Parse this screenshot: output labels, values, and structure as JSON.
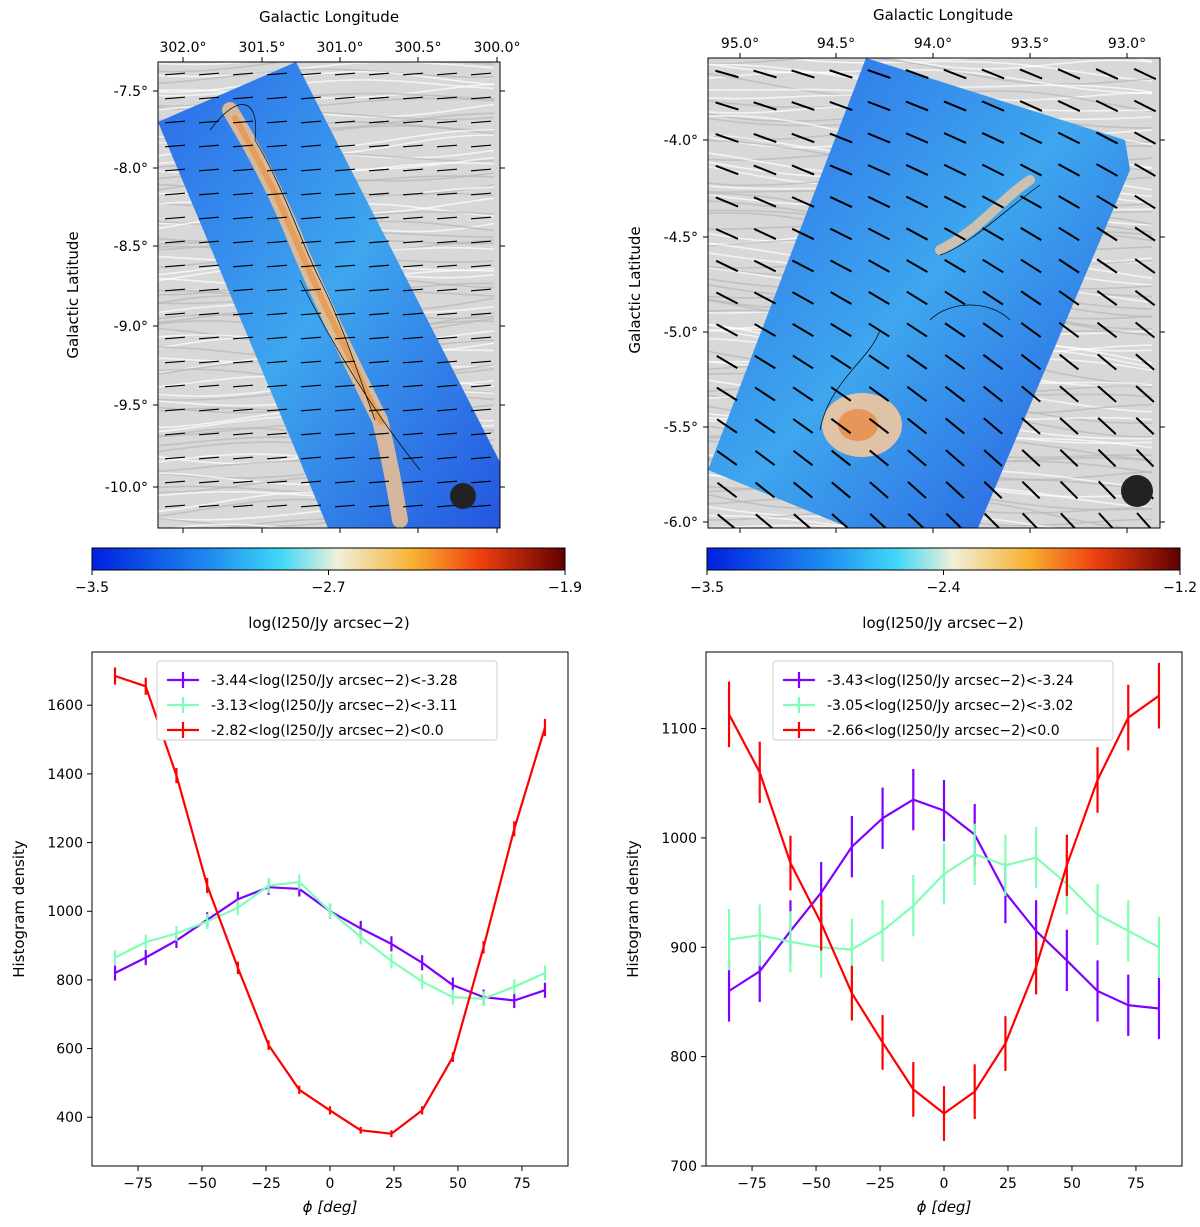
{
  "colors": {
    "purple": "#7f00ff",
    "green": "#80ffb4",
    "red": "#ff0000"
  },
  "maps": [
    {
      "title": "Galactic Longitude",
      "ylabel": "Galactic Latitude",
      "xticks": [
        "302.0°",
        "301.5°",
        "301.0°",
        "300.5°",
        "300.0°"
      ],
      "yticks": [
        "-7.5°",
        "-8.0°",
        "-8.5°",
        "-9.0°",
        "-9.5°",
        "-10.0°"
      ],
      "colorbar": {
        "min": -3.5,
        "max": -1.9,
        "ticks": [
          "−3.5",
          "−2.7",
          "−1.9"
        ],
        "label": "log(I250/Jy arcsec−2)"
      }
    },
    {
      "title": "Galactic Longitude",
      "ylabel": "Galactic Latitude",
      "xticks": [
        "95.0°",
        "94.5°",
        "94.0°",
        "93.5°",
        "93.0°"
      ],
      "yticks": [
        "-4.0°",
        "-4.5°",
        "-5.0°",
        "-5.5°",
        "-6.0°"
      ],
      "colorbar": {
        "min": -3.5,
        "max": -1.2,
        "ticks": [
          "−3.5",
          "−2.4",
          "−1.2"
        ],
        "label": "log(I250/Jy arcsec−2)"
      }
    }
  ],
  "chart_data": [
    {
      "type": "line",
      "xlabel": "ϕ [deg]",
      "ylabel": "Histogram density",
      "xlim": [
        -93,
        93
      ],
      "ylim": [
        258,
        1755
      ],
      "xticks": [
        -75,
        -50,
        -25,
        0,
        25,
        50,
        75
      ],
      "yticks": [
        400,
        600,
        800,
        1000,
        1200,
        1400,
        1600
      ],
      "x": [
        -84,
        -72,
        -60,
        -48,
        -36,
        -24,
        -12,
        0,
        12,
        24,
        36,
        48,
        60,
        72,
        84
      ],
      "legend_position": "top-center",
      "series": [
        {
          "name": "-3.44<log(I250/Jy arcsec−2)<-3.28",
          "color": "#7f00ff",
          "values": [
            820,
            865,
            915,
            975,
            1035,
            1070,
            1065,
            1000,
            950,
            905,
            850,
            785,
            750,
            740,
            770
          ],
          "err": [
            22,
            22,
            22,
            22,
            22,
            22,
            22,
            22,
            22,
            22,
            22,
            22,
            22,
            22,
            22
          ]
        },
        {
          "name": "-3.13<log(I250/Jy arcsec−2)<-3.11",
          "color": "#80ffb4",
          "values": [
            865,
            910,
            935,
            970,
            1010,
            1075,
            1085,
            1000,
            925,
            855,
            795,
            750,
            745,
            780,
            820
          ],
          "err": [
            22,
            22,
            22,
            22,
            22,
            22,
            22,
            22,
            22,
            22,
            22,
            22,
            22,
            22,
            22
          ]
        },
        {
          "name": "-2.82<log(I250/Jy arcsec−2)<0.0",
          "color": "#ff0000",
          "values": [
            1685,
            1655,
            1395,
            1075,
            835,
            610,
            480,
            420,
            362,
            352,
            420,
            575,
            895,
            1240,
            1535
          ],
          "err": [
            25,
            25,
            22,
            22,
            18,
            14,
            12,
            12,
            10,
            10,
            12,
            14,
            18,
            22,
            25
          ]
        }
      ]
    },
    {
      "type": "line",
      "xlabel": "ϕ [deg]",
      "ylabel": "Histogram density",
      "xlim": [
        -93,
        93
      ],
      "ylim": [
        700,
        1170
      ],
      "xticks": [
        -75,
        -50,
        -25,
        0,
        25,
        50,
        75
      ],
      "yticks": [
        700,
        800,
        900,
        1000,
        1100
      ],
      "x": [
        -84,
        -72,
        -60,
        -48,
        -36,
        -24,
        -12,
        0,
        12,
        24,
        36,
        48,
        60,
        72,
        84
      ],
      "legend_position": "top-center",
      "series": [
        {
          "name": "-3.43<log(I250/Jy arcsec−2)<-3.24",
          "color": "#7f00ff",
          "values": [
            860,
            878,
            915,
            950,
            992,
            1018,
            1035,
            1025,
            1003,
            950,
            915,
            888,
            860,
            847,
            844
          ],
          "err": [
            28,
            28,
            28,
            28,
            28,
            28,
            28,
            28,
            28,
            28,
            28,
            28,
            28,
            28,
            28
          ]
        },
        {
          "name": "-3.05<log(I250/Jy arcsec−2)<-3.02",
          "color": "#80ffb4",
          "values": [
            907,
            911,
            905,
            900,
            898,
            915,
            938,
            967,
            985,
            975,
            982,
            958,
            930,
            915,
            900
          ],
          "err": [
            28,
            28,
            28,
            28,
            28,
            28,
            28,
            28,
            28,
            28,
            28,
            28,
            28,
            28,
            28
          ]
        },
        {
          "name": "-2.66<log(I250/Jy arcsec−2)<0.0",
          "color": "#ff0000",
          "values": [
            1113,
            1060,
            977,
            922,
            858,
            813,
            770,
            748,
            768,
            812,
            882,
            975,
            1053,
            1110,
            1130
          ],
          "err": [
            30,
            28,
            25,
            25,
            25,
            25,
            25,
            25,
            25,
            25,
            25,
            28,
            30,
            30,
            30
          ]
        }
      ]
    }
  ]
}
